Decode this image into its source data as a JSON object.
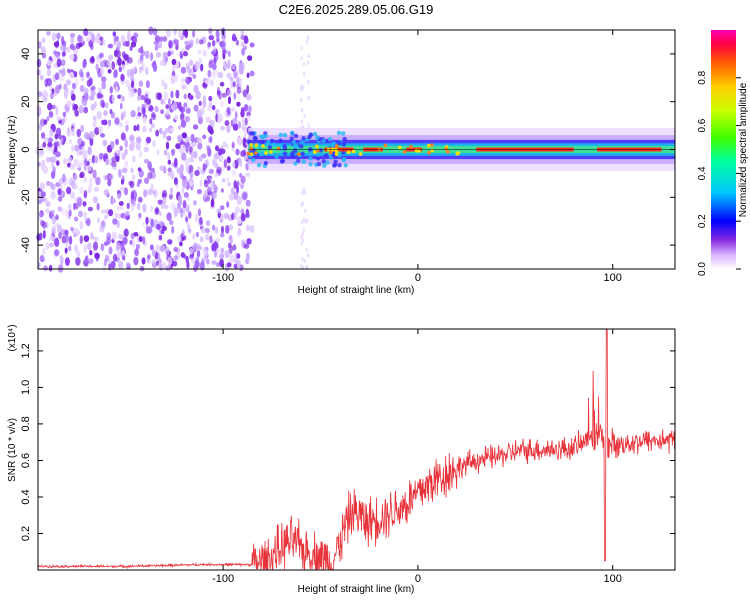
{
  "title": "C2E6.2025.289.05.06.G19",
  "chart_data": [
    {
      "type": "heatmap",
      "xlabel": "Height of straight line (km)",
      "ylabel": "Frequency (Hz)",
      "xlim": [
        -195,
        132
      ],
      "ylim": [
        -50,
        50
      ],
      "xticks": [
        -100,
        0,
        100
      ],
      "yticks": [
        -40,
        -20,
        0,
        20,
        40
      ],
      "colorbar": {
        "label": "Normalized spectral amplitude",
        "range": [
          0,
          1
        ],
        "ticks": [
          "0.0",
          "0.2",
          "0.4",
          "0.6",
          "0.8"
        ]
      },
      "band_center_hz": 0,
      "noise_region_km": [
        -195,
        -85
      ],
      "signal_start_km": -87,
      "stray_column_km": -58
    },
    {
      "type": "line",
      "xlabel": "Height of straight line (km)",
      "ylabel": "SNR (10 * v/v)",
      "y_multiplier": "(x10⁴)",
      "xlim": [
        -195,
        132
      ],
      "ylim": [
        0,
        1.32
      ],
      "xticks": [
        -100,
        0,
        100
      ],
      "yticks": [
        "0.2",
        "0.4",
        "0.6",
        "0.8",
        "1.0",
        "1.2"
      ],
      "color": "#e8333a",
      "x": [
        -195,
        -150,
        -110,
        -85,
        -78,
        -72,
        -68,
        -64,
        -60,
        -56,
        -52,
        -48,
        -44,
        -40,
        -36,
        -33,
        -30,
        -26,
        -22,
        -18,
        -14,
        -10,
        -6,
        -2,
        2,
        6,
        10,
        15,
        20,
        25,
        30,
        40,
        50,
        60,
        70,
        80,
        86,
        90,
        94,
        97,
        100,
        105,
        110,
        120,
        132
      ],
      "y": [
        0.02,
        0.02,
        0.03,
        0.03,
        0.05,
        0.1,
        0.14,
        0.16,
        0.12,
        0.09,
        0.08,
        0.06,
        0.04,
        0.15,
        0.28,
        0.32,
        0.3,
        0.26,
        0.28,
        0.3,
        0.32,
        0.34,
        0.36,
        0.4,
        0.44,
        0.47,
        0.5,
        0.53,
        0.56,
        0.58,
        0.6,
        0.62,
        0.65,
        0.66,
        0.66,
        0.67,
        0.7,
        0.72,
        0.75,
        0.7,
        0.68,
        0.69,
        0.7,
        0.71,
        0.71
      ]
    }
  ]
}
